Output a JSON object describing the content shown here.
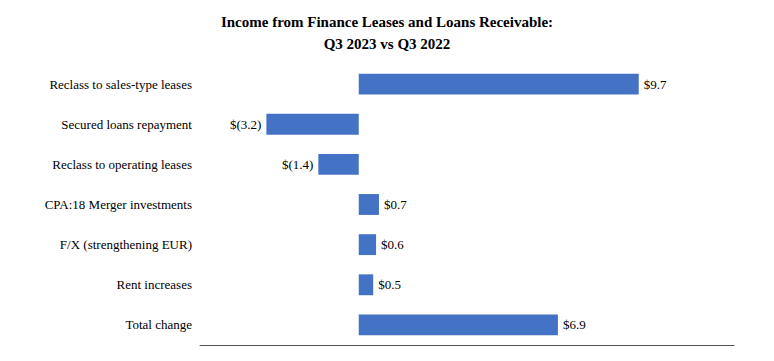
{
  "chart_data": {
    "type": "bar",
    "orientation": "horizontal",
    "title": "Income from Finance Leases and Loans Receivable:\nQ3 2023 vs Q3 2022",
    "categories": [
      "Reclass to sales-type leases",
      "Secured loans repayment",
      "Reclass to operating leases",
      "CPA:18 Merger investments",
      "F/X (strengthening EUR)",
      "Rent increases",
      "Total change"
    ],
    "values": [
      9.7,
      -3.2,
      -1.4,
      0.7,
      0.6,
      0.5,
      6.9
    ],
    "value_labels": [
      "$9.7",
      "$(3.2)",
      "$(1.4)",
      "$0.7",
      "$0.6",
      "$0.5",
      "$6.9"
    ],
    "data_labels": true,
    "color": "#4472C4",
    "xlim": [
      -5.5,
      13.0
    ],
    "grid": false,
    "tick_labels": "y"
  }
}
